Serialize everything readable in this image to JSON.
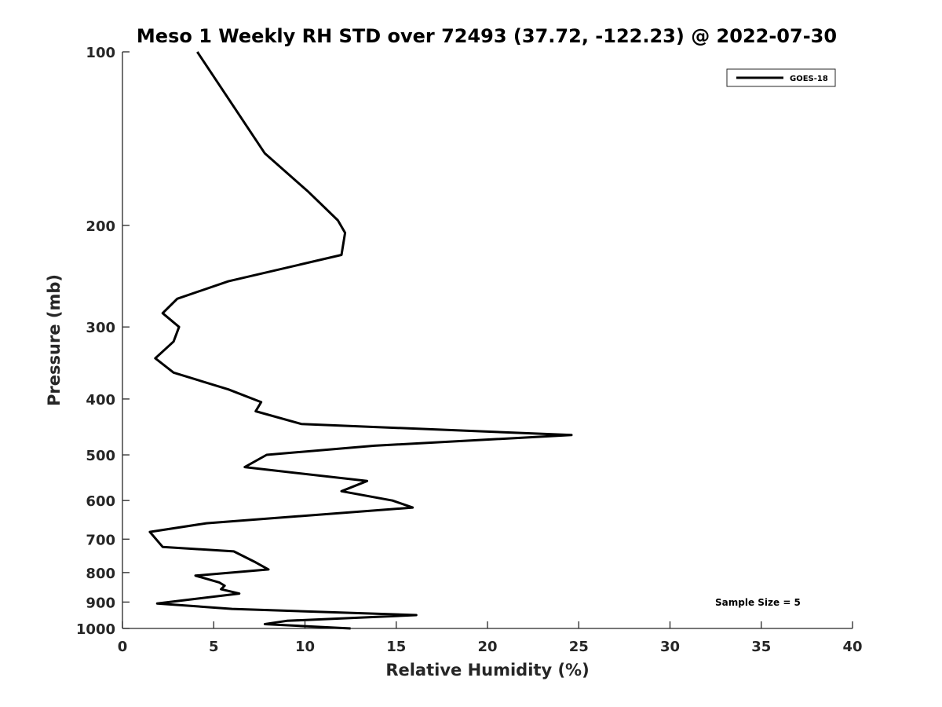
{
  "chart_data": {
    "type": "line",
    "title": "Meso 1 Weekly RH STD over 72493 (37.72, -122.23) @ 2022-07-30",
    "xlabel": "Relative Humidity (%)",
    "ylabel": "Pressure (mb)",
    "xlim": [
      0,
      40
    ],
    "ylim": [
      100,
      1000
    ],
    "y_scale": "log",
    "y_reversed": true,
    "x_ticks": [
      0,
      5,
      10,
      15,
      20,
      25,
      30,
      35,
      40
    ],
    "y_ticks": [
      100,
      200,
      300,
      400,
      500,
      600,
      700,
      800,
      900,
      1000
    ],
    "grid": false,
    "legend_position": "top-right",
    "annotation": "Sample Size = 5",
    "series": [
      {
        "name": "GOES-18",
        "color": "#000000",
        "points": [
          [
            4.1,
            100
          ],
          [
            7.8,
            150
          ],
          [
            10.2,
            175
          ],
          [
            11.8,
            196
          ],
          [
            12.2,
            206
          ],
          [
            12.0,
            225
          ],
          [
            5.8,
            250
          ],
          [
            3.0,
            268
          ],
          [
            2.2,
            284
          ],
          [
            3.1,
            300
          ],
          [
            2.8,
            318
          ],
          [
            1.8,
            340
          ],
          [
            2.8,
            360
          ],
          [
            5.8,
            385
          ],
          [
            7.6,
            405
          ],
          [
            7.3,
            420
          ],
          [
            9.8,
            442
          ],
          [
            24.6,
            462
          ],
          [
            13.8,
            482
          ],
          [
            7.9,
            500
          ],
          [
            6.7,
            525
          ],
          [
            13.4,
            555
          ],
          [
            12.0,
            578
          ],
          [
            14.8,
            600
          ],
          [
            15.9,
            617
          ],
          [
            4.6,
            657
          ],
          [
            1.5,
            680
          ],
          [
            2.2,
            722
          ],
          [
            6.1,
            735
          ],
          [
            7.3,
            768
          ],
          [
            8.0,
            790
          ],
          [
            4.0,
            810
          ],
          [
            5.3,
            832
          ],
          [
            5.6,
            843
          ],
          [
            5.4,
            855
          ],
          [
            6.4,
            870
          ],
          [
            1.9,
            905
          ],
          [
            6.0,
            925
          ],
          [
            16.1,
            948
          ],
          [
            9.0,
            970
          ],
          [
            7.8,
            983
          ],
          [
            12.5,
            1000
          ]
        ]
      }
    ]
  }
}
